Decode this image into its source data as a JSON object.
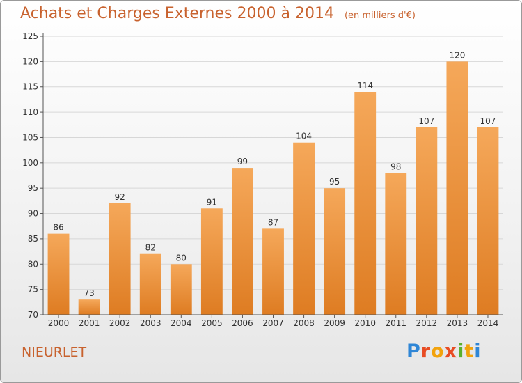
{
  "title": "Achats et Charges Externes 2000 à 2014",
  "subtitle": "(en milliers d'€)",
  "commune": "NIEURLET",
  "logo_text": "Proxiti",
  "colors": {
    "title": "#c8622e",
    "bar_top": "#f5a85a",
    "bar_bottom": "#de7c22",
    "grid": "#d7d7d7"
  },
  "chart_data": {
    "type": "bar",
    "categories": [
      "2000",
      "2001",
      "2002",
      "2003",
      "2004",
      "2005",
      "2006",
      "2007",
      "2008",
      "2009",
      "2010",
      "2011",
      "2012",
      "2013",
      "2014"
    ],
    "values": [
      86,
      73,
      92,
      82,
      80,
      91,
      99,
      87,
      104,
      95,
      114,
      98,
      107,
      120,
      107
    ],
    "ylim": [
      70,
      125
    ],
    "yticks": [
      70,
      75,
      80,
      85,
      90,
      95,
      100,
      105,
      110,
      115,
      120,
      125
    ],
    "grid": true
  }
}
